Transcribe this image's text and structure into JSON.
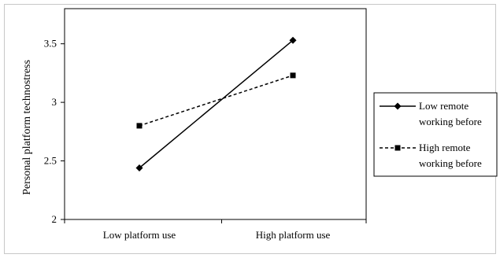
{
  "chart_data": {
    "type": "line",
    "categories": [
      "Low platform use",
      "High platform use"
    ],
    "series": [
      {
        "name": "Low remote working before",
        "values": [
          2.44,
          3.53
        ],
        "marker": "diamond",
        "line_style": "solid",
        "color": "#000000"
      },
      {
        "name": "High remote working before",
        "values": [
          2.8,
          3.23
        ],
        "marker": "square",
        "line_style": "dashed",
        "color": "#000000"
      }
    ],
    "ylabel": "Personal platform technostress",
    "xlabel": "",
    "ylim": [
      2,
      3.8
    ],
    "yticks": [
      "2",
      "2.5",
      "3",
      "3.5"
    ],
    "ytick_values": [
      2,
      2.5,
      3,
      3.5
    ],
    "grid": false,
    "legend_position": "right",
    "legend_lines": [
      [
        "Low remote",
        "working before"
      ],
      [
        "High remote",
        "working before"
      ]
    ]
  }
}
